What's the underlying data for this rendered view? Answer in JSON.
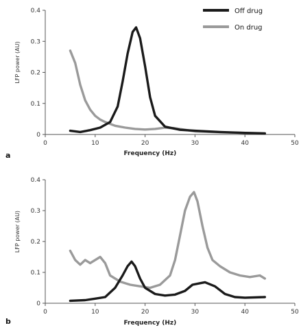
{
  "legend": [
    {
      "label": "Off drug",
      "color": "#1a1a1a"
    },
    {
      "label": "On drug",
      "color": "#9a9a9a"
    }
  ],
  "chart_data": [
    {
      "type": "line",
      "panel": "a",
      "xlabel": "Frequency (Hz)",
      "ylabel": "LFP power (AU)",
      "xlim": [
        0,
        50
      ],
      "ylim": [
        0,
        0.4
      ],
      "xticks": [
        0,
        10,
        20,
        30,
        40,
        50
      ],
      "yticks": [
        0,
        0.1,
        0.2,
        0.3,
        0.4
      ],
      "series": [
        {
          "name": "Off drug",
          "color": "#1a1a1a",
          "x": [
            5,
            7,
            9,
            11,
            13,
            14.5,
            15.5,
            16.5,
            17.5,
            18.2,
            19,
            20,
            21,
            22,
            24,
            27,
            30,
            35,
            40,
            44
          ],
          "y": [
            0.012,
            0.008,
            0.014,
            0.022,
            0.04,
            0.09,
            0.17,
            0.26,
            0.33,
            0.345,
            0.31,
            0.22,
            0.12,
            0.06,
            0.025,
            0.015,
            0.012,
            0.008,
            0.005,
            0.003
          ]
        },
        {
          "name": "On drug",
          "color": "#9a9a9a",
          "x": [
            5,
            6,
            7,
            8,
            9,
            10,
            11,
            12,
            14,
            16,
            18,
            20,
            22,
            24,
            26,
            28,
            30,
            35,
            40,
            44
          ],
          "y": [
            0.27,
            0.23,
            0.16,
            0.11,
            0.08,
            0.06,
            0.048,
            0.04,
            0.028,
            0.022,
            0.018,
            0.016,
            0.018,
            0.022,
            0.02,
            0.015,
            0.01,
            0.007,
            0.005,
            0.004
          ]
        }
      ]
    },
    {
      "type": "line",
      "panel": "b",
      "xlabel": "Frequency (Hz)",
      "ylabel": "LFP power (AU)",
      "xlim": [
        0,
        50
      ],
      "ylim": [
        0,
        0.4
      ],
      "xticks": [
        0,
        10,
        20,
        30,
        40,
        50
      ],
      "yticks": [
        0,
        0.1,
        0.2,
        0.3,
        0.4
      ],
      "series": [
        {
          "name": "Off drug",
          "color": "#1a1a1a",
          "x": [
            5,
            8,
            10,
            12,
            14,
            15.5,
            16.5,
            17.3,
            18,
            19,
            20,
            22,
            24,
            26,
            28,
            29.5,
            31,
            32,
            34,
            36,
            38,
            40,
            44
          ],
          "y": [
            0.008,
            0.01,
            0.015,
            0.02,
            0.05,
            0.09,
            0.12,
            0.135,
            0.12,
            0.08,
            0.05,
            0.03,
            0.025,
            0.028,
            0.04,
            0.06,
            0.065,
            0.068,
            0.055,
            0.03,
            0.02,
            0.018,
            0.02
          ]
        },
        {
          "name": "On drug",
          "color": "#9a9a9a",
          "x": [
            5,
            6,
            7,
            8,
            9,
            10,
            11,
            12,
            13,
            15,
            17,
            19,
            21,
            23,
            25,
            26,
            27,
            28,
            29,
            29.8,
            30.5,
            31.5,
            32.5,
            33.5,
            35,
            37,
            39,
            41,
            43,
            44
          ],
          "y": [
            0.17,
            0.14,
            0.125,
            0.14,
            0.13,
            0.14,
            0.15,
            0.13,
            0.09,
            0.07,
            0.06,
            0.055,
            0.05,
            0.06,
            0.09,
            0.14,
            0.22,
            0.3,
            0.345,
            0.36,
            0.33,
            0.25,
            0.18,
            0.14,
            0.12,
            0.1,
            0.09,
            0.085,
            0.09,
            0.08
          ]
        }
      ]
    }
  ]
}
